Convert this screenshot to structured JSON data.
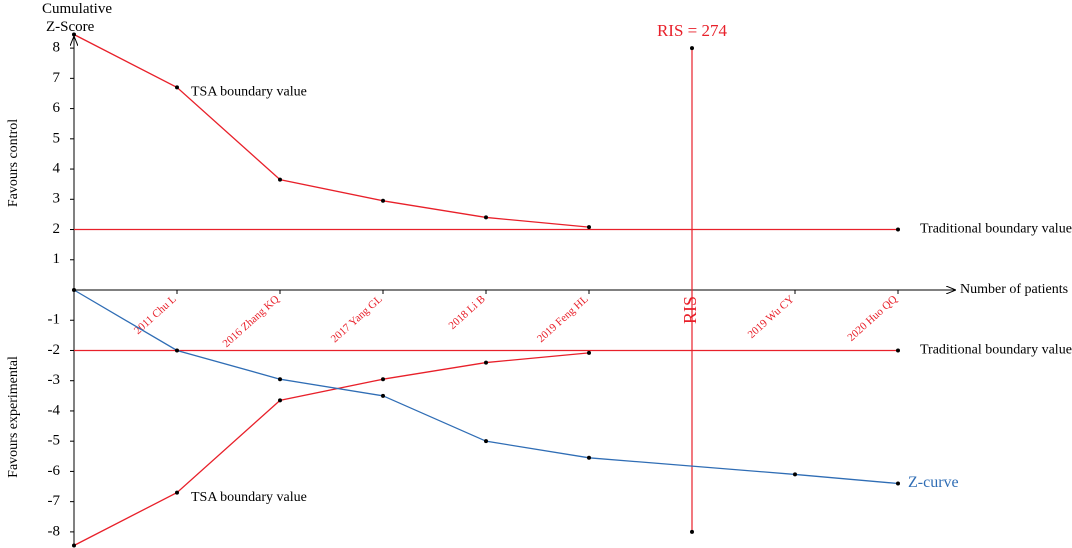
{
  "chart_data": {
    "type": "line",
    "title": "Cumulative Z-Score",
    "x_label": "Number of patients",
    "y_label_top": "Favours control",
    "y_label_bottom": "Favours experimental",
    "categories": [
      null,
      "2011 Chu L",
      "2016 Zhang KQ",
      "2017 Yang GL",
      "2018 Li B",
      "2019 Feng HL",
      "RIS",
      "2019 Wu CY",
      "2020 Huo QQ"
    ],
    "ylim": [
      -8.5,
      8.5
    ],
    "yticks": [
      8,
      7,
      6,
      5,
      4,
      3,
      2,
      1,
      -1,
      -2,
      -3,
      -4,
      -5,
      -6,
      -7,
      -8
    ],
    "series": [
      {
        "name": "TSA boundary value",
        "color": "#e8202a",
        "x": [
          0,
          1,
          2,
          3,
          4,
          5
        ],
        "values": [
          8.45,
          6.7,
          3.65,
          2.95,
          2.4,
          2.08
        ]
      },
      {
        "name": "TSA boundary value",
        "color": "#e8202a",
        "x": [
          0,
          1,
          2,
          3,
          4,
          5
        ],
        "values": [
          -8.45,
          -6.7,
          -3.65,
          -2.95,
          -2.4,
          -2.08
        ]
      },
      {
        "name": "Z-curve",
        "color": "#2f6db5",
        "x": [
          0,
          1,
          2,
          3,
          4,
          5,
          7,
          8
        ],
        "values": [
          0,
          -2.0,
          -2.95,
          -3.5,
          -5.0,
          -5.55,
          -6.1,
          -6.4
        ]
      }
    ],
    "boundaries": [
      {
        "value": 2,
        "label": "Traditional boundary value"
      },
      {
        "value": -2,
        "label": "Traditional boundary value"
      }
    ],
    "ris": {
      "label": "RIS = 274",
      "x": 6,
      "ylim": [
        -8,
        8
      ]
    }
  }
}
